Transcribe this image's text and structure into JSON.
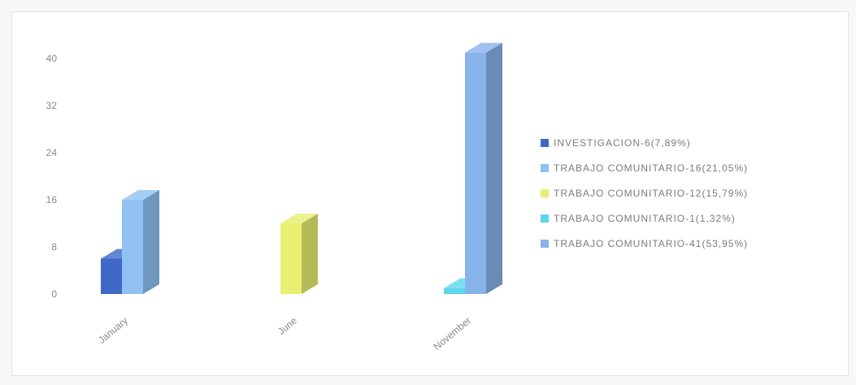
{
  "chart_data": {
    "type": "bar",
    "categories": [
      "January",
      "June",
      "November"
    ],
    "ylim": [
      0,
      40
    ],
    "yticks": [
      0,
      8,
      16,
      24,
      32,
      40
    ],
    "grid": false,
    "legend_position": "right",
    "series": [
      {
        "name": "INVESTIGACION-6(7,89%)",
        "color": "#3f68c7",
        "values": [
          6,
          null,
          null
        ]
      },
      {
        "name": "TRABAJO COMUNITARIO-16(21,05%)",
        "color": "#8fc2f2",
        "values": [
          16,
          null,
          null
        ]
      },
      {
        "name": "TRABAJO COMUNITARIO-12(15,79%)",
        "color": "#e8ef72",
        "values": [
          null,
          12,
          null
        ]
      },
      {
        "name": "TRABAJO COMUNITARIO-1(1,32%)",
        "color": "#5dd6ee",
        "values": [
          null,
          null,
          1
        ]
      },
      {
        "name": "TRABAJO COMUNITARIO-41(53,95%)",
        "color": "#88b2ea",
        "values": [
          null,
          null,
          41
        ]
      }
    ]
  }
}
